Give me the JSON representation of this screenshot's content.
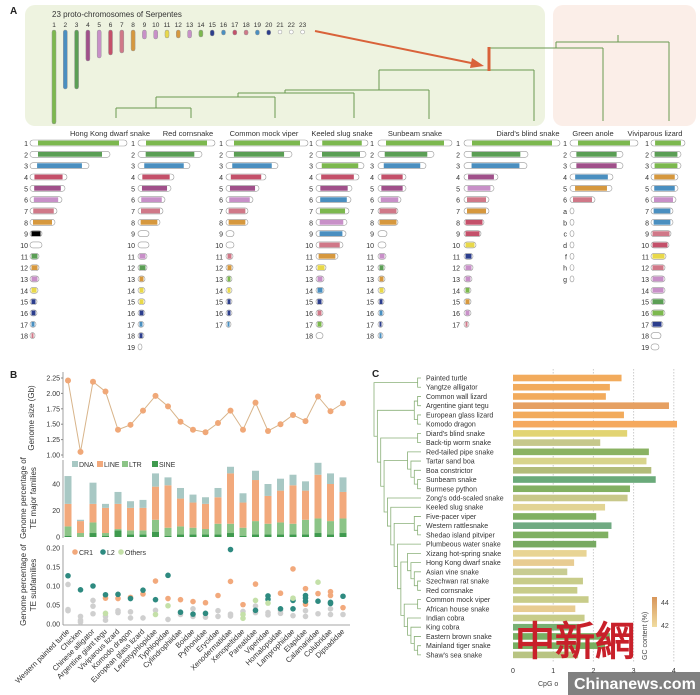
{
  "panel_labels": {
    "a": "A",
    "b": "B",
    "c": "C"
  },
  "panel_a": {
    "title": "23 proto-chromosomes of Serpentes",
    "proto_numbers": [
      "1",
      "2",
      "3",
      "4",
      "5",
      "6",
      "7",
      "8",
      "9",
      "10",
      "11",
      "12",
      "13",
      "14",
      "15",
      "16",
      "17",
      "18",
      "19",
      "20",
      "21",
      "22",
      "23"
    ],
    "species": [
      {
        "name": "Hong Kong dwarf snake",
        "rows": [
          "1",
          "2",
          "3",
          "4",
          "5",
          "6",
          "7",
          "8",
          "9",
          "10",
          "11",
          "12",
          "13",
          "14",
          "15",
          "16",
          "17",
          "18"
        ]
      },
      {
        "name": "Red cornsnake",
        "rows": [
          "1",
          "2",
          "3",
          "4",
          "5",
          "6",
          "7",
          "8",
          "9",
          "10",
          "11",
          "12",
          "13",
          "14",
          "15",
          "16",
          "17",
          "18",
          "19"
        ]
      },
      {
        "name": "Common mock viper",
        "rows": [
          "1",
          "2",
          "3",
          "4",
          "5",
          "6",
          "7",
          "8",
          "9",
          "10",
          "11",
          "12",
          "13",
          "14",
          "15",
          "16",
          "17"
        ]
      },
      {
        "name": "Keeled slug snake",
        "rows": [
          "1",
          "2",
          "3",
          "4",
          "5",
          "6",
          "7",
          "8",
          "9",
          "10",
          "11",
          "12",
          "13",
          "14",
          "15",
          "16",
          "17",
          "18"
        ]
      },
      {
        "name": "Sunbeam snake",
        "rows": [
          "1",
          "2",
          "3",
          "4",
          "5",
          "6",
          "7",
          "8",
          "9",
          "10",
          "11",
          "12",
          "13",
          "14",
          "15",
          "16",
          "17",
          "18"
        ]
      },
      {
        "name": "Diard's blind snake",
        "rows": [
          "1",
          "2",
          "3",
          "4",
          "5",
          "6",
          "7",
          "8",
          "9",
          "10",
          "11",
          "12",
          "13",
          "14",
          "15",
          "16",
          "17"
        ]
      },
      {
        "name": "Green anole",
        "rows": [
          "1",
          "2",
          "3",
          "4",
          "5",
          "6",
          "a",
          "b",
          "c",
          "d",
          "f",
          "h",
          "g"
        ]
      },
      {
        "name": "Viviparous lizard",
        "rows": [
          "1",
          "2",
          "3",
          "4",
          "5",
          "6",
          "7",
          "8",
          "9",
          "10",
          "11",
          "12",
          "13",
          "14",
          "15",
          "16",
          "17",
          "18",
          "19"
        ]
      }
    ],
    "palette": {
      "G": "#7cb84e",
      "g": "#5b9e55",
      "b": "#4a8fc0",
      "r": "#c4506a",
      "p": "#a0508a",
      "L": "#c890c8",
      "k": "#d07888",
      "o": "#d6983e",
      "y": "#e8d84a",
      "N": "#2c3e8c",
      "w": "#ffffff"
    },
    "background_snakes": "#eef3e0",
    "background_lizards": "#fbeee8",
    "highlight": "#d9623a",
    "tree": "#6a9a50"
  },
  "chart_data": [
    {
      "type": "line",
      "panel": "B",
      "ylabel": "Genome size (Gb)",
      "ylim": [
        1.0,
        2.25
      ],
      "yticks": [
        "2.25",
        "2.00",
        "1.75",
        "1.50",
        "1.25",
        "1.00"
      ],
      "categories": [
        "Western painted turtle",
        "Chicken",
        "Chinese alligator",
        "Argentine giant tegu",
        "Viviparous lizard",
        "Komodo dragon",
        "European glass lizard",
        "Leptotyphlopidae",
        "Typhlopidae",
        "Cylindrophiidae",
        "Boidae",
        "Pythonidae",
        "Erycidae",
        "Xenodermatidae",
        "Xenopeltidae",
        "Pareatidae",
        "Viperidae",
        "Homalopsidae",
        "Lamprophiidae",
        "Elapidae",
        "Calamariidae",
        "Colubridae",
        "Dipsadidae"
      ],
      "values": [
        2.21,
        1.05,
        2.19,
        2.03,
        1.41,
        1.49,
        1.72,
        1.96,
        1.79,
        1.54,
        1.41,
        1.37,
        1.52,
        1.72,
        1.41,
        1.85,
        1.39,
        1.5,
        1.65,
        1.55,
        1.95,
        1.71,
        1.84
      ],
      "color": "#f0a878"
    },
    {
      "type": "bar",
      "stacked": true,
      "panel": "B",
      "ylabel": [
        "Genome percentage of",
        "TE major families"
      ],
      "ylim": [
        0,
        58
      ],
      "yticks": [
        "0",
        "20",
        "40"
      ],
      "legend": "top-left",
      "series": [
        {
          "name": "SINE",
          "color": "#3f9a4e",
          "values": [
            1,
            0,
            3,
            1,
            5,
            2,
            2,
            4,
            1,
            2,
            2,
            2,
            2,
            3,
            1,
            2,
            2,
            2,
            2,
            2,
            3,
            2,
            3
          ]
        },
        {
          "name": "LTR",
          "color": "#8cc487",
          "values": [
            7,
            3,
            8,
            2,
            1,
            3,
            3,
            9,
            6,
            6,
            5,
            4,
            8,
            7,
            6,
            10,
            8,
            9,
            8,
            11,
            11,
            10,
            11
          ]
        },
        {
          "name": "LINE",
          "color": "#f2a97c",
          "values": [
            17,
            9,
            14,
            19,
            19,
            17,
            17,
            25,
            32,
            21,
            19,
            19,
            20,
            38,
            19,
            31,
            21,
            24,
            29,
            22,
            33,
            28,
            20
          ]
        },
        {
          "name": "DNA",
          "color": "#a8c8c4",
          "values": [
            21,
            1,
            16,
            3,
            9,
            5,
            6,
            10,
            6,
            8,
            6,
            5,
            7,
            5,
            7,
            7,
            9,
            9,
            8,
            7,
            9,
            8,
            11
          ]
        }
      ],
      "legend_order": [
        "DNA",
        "LINE",
        "LTR",
        "SINE"
      ]
    },
    {
      "type": "scatter",
      "panel": "B",
      "ylabel": [
        "Genome percentage of",
        "TE subfamilies"
      ],
      "ylim": [
        0,
        0.2
      ],
      "yticks": [
        "0.20",
        "0.15",
        "0.10",
        "0.05",
        "0.00"
      ],
      "legend": "top-left",
      "series": [
        {
          "name": "CR1",
          "color": "#f2a97c",
          "points": [
            [
              3,
              0.068
            ],
            [
              4,
              0.067
            ],
            [
              5,
              0.07
            ],
            [
              6,
              0.079
            ],
            [
              7,
              0.113
            ],
            [
              8,
              0.067
            ],
            [
              9,
              0.064
            ],
            [
              10,
              0.059
            ],
            [
              11,
              0.056
            ],
            [
              12,
              0.075
            ],
            [
              13,
              0.112
            ],
            [
              14,
              0.051
            ],
            [
              15,
              0.105
            ],
            [
              17,
              0.081
            ],
            [
              18,
              0.145
            ],
            [
              19,
              0.093
            ],
            [
              19,
              0.052
            ],
            [
              20,
              0.08
            ],
            [
              21,
              0.085
            ],
            [
              21,
              0.075
            ],
            [
              22,
              0.043
            ]
          ]
        },
        {
          "name": "L2",
          "color": "#2e8a80",
          "points": [
            [
              0,
              0.127
            ],
            [
              1,
              0.09
            ],
            [
              2,
              0.1
            ],
            [
              3,
              0.077
            ],
            [
              4,
              0.078
            ],
            [
              5,
              0.067
            ],
            [
              6,
              0.089
            ],
            [
              7,
              0.064
            ],
            [
              8,
              0.128
            ],
            [
              9,
              0.031
            ],
            [
              10,
              0.026
            ],
            [
              11,
              0.028
            ],
            [
              13,
              0.196
            ],
            [
              15,
              0.036
            ],
            [
              16,
              0.074
            ],
            [
              16,
              0.065
            ],
            [
              17,
              0.04
            ],
            [
              18,
              0.062
            ],
            [
              18,
              0.04
            ],
            [
              19,
              0.075
            ],
            [
              19,
              0.068
            ],
            [
              19,
              0.06
            ],
            [
              20,
              0.06
            ],
            [
              21,
              0.057
            ],
            [
              21,
              0.054
            ],
            [
              22,
              0.073
            ]
          ]
        },
        {
          "name": "Others",
          "color": "#c4e0a8",
          "points": [
            [
              3,
              0.028
            ],
            [
              7,
              0.025
            ],
            [
              8,
              0.048
            ],
            [
              14,
              0.025
            ],
            [
              14,
              0.015
            ],
            [
              15,
              0.062
            ],
            [
              16,
              0.055
            ],
            [
              18,
              0.068
            ],
            [
              20,
              0.11
            ]
          ]
        },
        {
          "color": "#cfcfcf",
          "points": [
            [
              0,
              0.104
            ],
            [
              0,
              0.038
            ],
            [
              0,
              0.035
            ],
            [
              1,
              0.02
            ],
            [
              1,
              0.01
            ],
            [
              1,
              0.005
            ],
            [
              2,
              0.062
            ],
            [
              2,
              0.047
            ],
            [
              2,
              0.027
            ],
            [
              3,
              0.02
            ],
            [
              3,
              0.01
            ],
            [
              4,
              0.035
            ],
            [
              4,
              0.03
            ],
            [
              5,
              0.032
            ],
            [
              5,
              0.016
            ],
            [
              6,
              0.016
            ],
            [
              7,
              0.036
            ],
            [
              8,
              0.012
            ],
            [
              9,
              0.025
            ],
            [
              10,
              0.04
            ],
            [
              10,
              0.02
            ],
            [
              11,
              0.018
            ],
            [
              12,
              0.035
            ],
            [
              12,
              0.02
            ],
            [
              13,
              0.026
            ],
            [
              13,
              0.021
            ],
            [
              14,
              0.033
            ],
            [
              15,
              0.047
            ],
            [
              15,
              0.03
            ],
            [
              16,
              0.03
            ],
            [
              16,
              0.024
            ],
            [
              17,
              0.035
            ],
            [
              17,
              0.028
            ],
            [
              18,
              0.022
            ],
            [
              19,
              0.035
            ],
            [
              19,
              0.02
            ],
            [
              20,
              0.027
            ],
            [
              21,
              0.04
            ],
            [
              21,
              0.025
            ],
            [
              22,
              0.025
            ]
          ]
        }
      ]
    },
    {
      "type": "bar",
      "orientation": "horizontal",
      "panel": "C",
      "xlabel": "CpG o",
      "xlim": [
        0,
        4.2
      ],
      "xticks": [
        "0",
        "1",
        "2",
        "3",
        "4"
      ],
      "grid": true,
      "categories": [
        "Painted turtle",
        "Yangtze alligator",
        "Common wall lizard",
        "Argentine giant tegu",
        "European glass lizard",
        "Komodo dragon",
        "Diard's blind snake",
        "Back-tip worm snake",
        "Red-tailed pipe snake",
        "Tartar sand boa",
        "Boa constrictor",
        "Sunbeam snake",
        "Burmese python",
        "Zong's odd-scaled snake",
        "Keeled slug snake",
        "Five-pacer viper",
        "Western rattlesnake",
        "Shedao island pitviper",
        "Plumbeous water snake",
        "Xizang hot-spring snake",
        "Hong Kong dwarf snake",
        "Asian vine snake",
        "Szechwan rat snake",
        "Red cornsnake",
        "Common mock viper",
        "African house snake",
        "Indian cobra",
        "King cobra",
        "Eastern brown snake",
        "Mainland tiger snake",
        "Shaw's sea snake"
      ],
      "values": [
        2.7,
        2.41,
        2.31,
        3.88,
        2.76,
        4.08,
        2.84,
        2.17,
        3.38,
        3.32,
        3.44,
        3.55,
        2.91,
        2.85,
        2.29,
        2.07,
        2.45,
        2.37,
        2.07,
        1.83,
        1.52,
        1.35,
        1.74,
        1.6,
        1.88,
        1.55,
        1.78,
        1.64,
        2.41,
        2.29,
        1.62
      ],
      "colors": [
        "#f2ab5c",
        "#f2ab5c",
        "#f2ab5c",
        "#e6a062",
        "#f2ab5c",
        "#f5a95e",
        "#e2d472",
        "#c6c88c",
        "#8ab262",
        "#d8d48c",
        "#b2bc7a",
        "#6aaa7a",
        "#82b062",
        "#c8c88a",
        "#e2d494",
        "#80b062",
        "#70aa82",
        "#80b062",
        "#78aa62",
        "#e8d494",
        "#e8cc92",
        "#c8cc92",
        "#c8cc8a",
        "#c8cc8a",
        "#c8cc8a",
        "#e8cc92",
        "#c8cc8a",
        "#78b072",
        "#78b062",
        "#78b062",
        "#b8c482"
      ],
      "colorbar": {
        "label": "GC content (%)",
        "ticks": [
          "44",
          "42"
        ]
      }
    }
  ],
  "watermark": {
    "chinese": "中新網",
    "site": "Chinanews.com"
  }
}
